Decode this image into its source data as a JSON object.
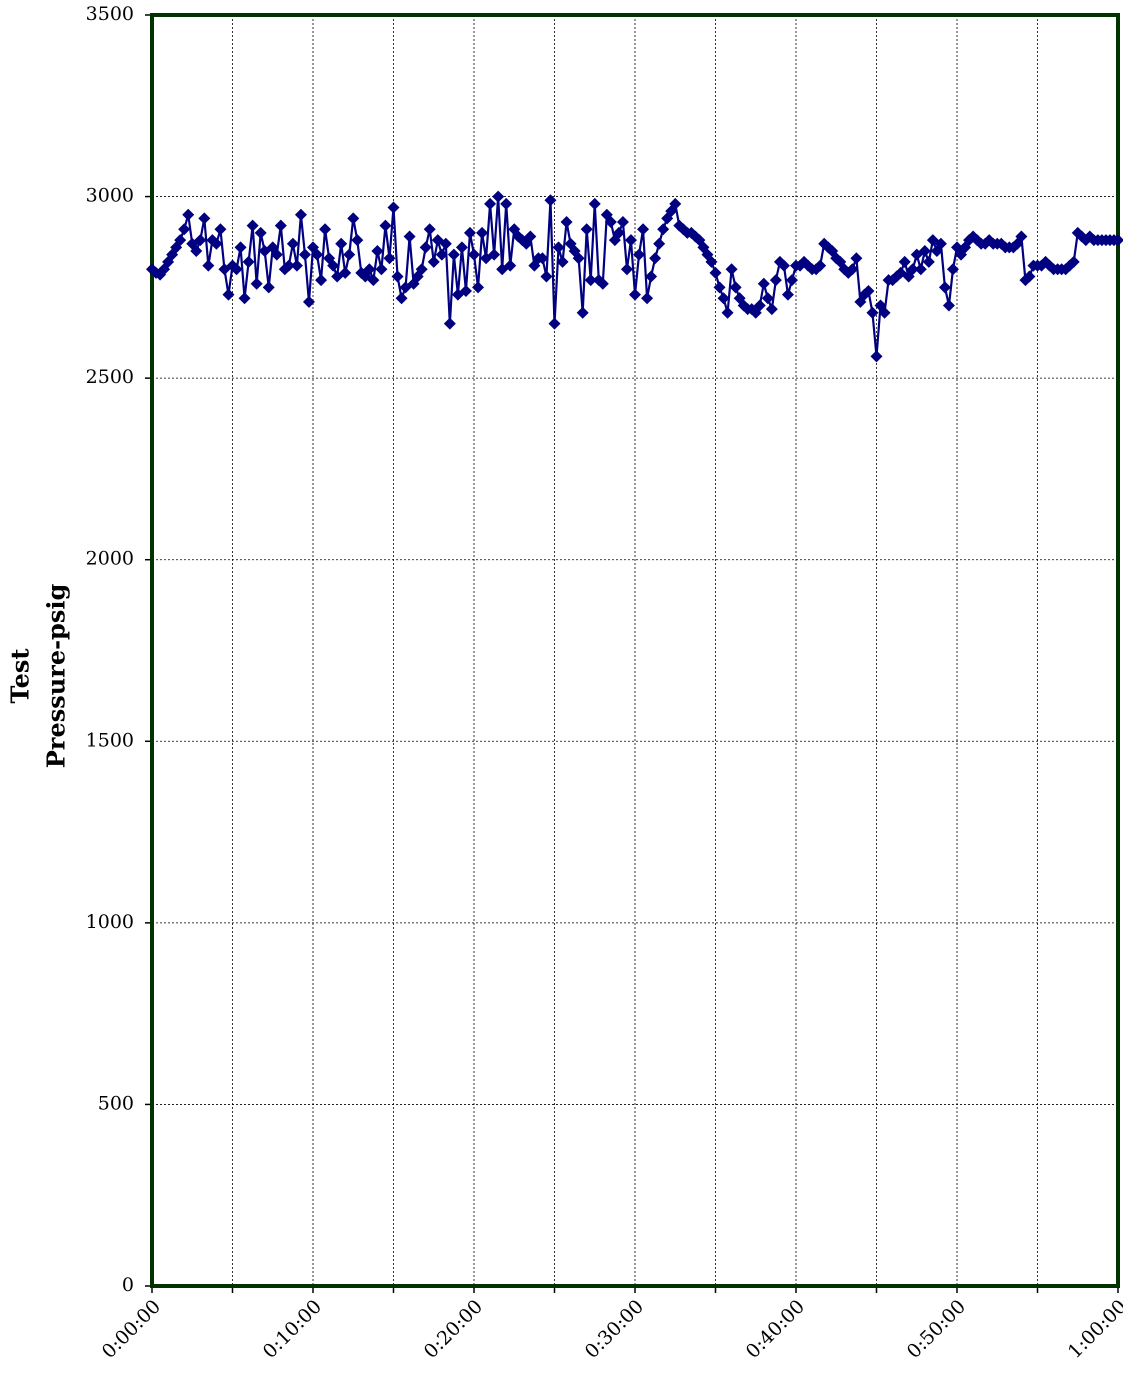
{
  "chart_data": {
    "type": "line",
    "ylabel": [
      "Test",
      "Pressure-psig"
    ],
    "color": "#000080",
    "frame_color": "#003300",
    "grid": true,
    "xlim": [
      0,
      3600
    ],
    "xticks": [
      {
        "value": 0,
        "label": "0:00:00"
      },
      {
        "value": 300,
        "label": null
      },
      {
        "value": 600,
        "label": "0:10:00"
      },
      {
        "value": 900,
        "label": null
      },
      {
        "value": 1200,
        "label": "0:20:00"
      },
      {
        "value": 1500,
        "label": null
      },
      {
        "value": 1800,
        "label": "0:30:00"
      },
      {
        "value": 2100,
        "label": null
      },
      {
        "value": 2400,
        "label": "0:40:00"
      },
      {
        "value": 2700,
        "label": null
      },
      {
        "value": 3000,
        "label": "0:50:00"
      },
      {
        "value": 3300,
        "label": null
      },
      {
        "value": 3600,
        "label": "1:00:00"
      }
    ],
    "ylim": [
      0,
      3500
    ],
    "yticks": [
      0,
      500,
      1000,
      1500,
      2000,
      2500,
      3000,
      3500
    ],
    "x": [
      0,
      15,
      30,
      45,
      60,
      75,
      90,
      105,
      120,
      135,
      150,
      165,
      180,
      195,
      210,
      225,
      240,
      255,
      270,
      285,
      300,
      315,
      330,
      345,
      360,
      375,
      390,
      405,
      420,
      435,
      450,
      465,
      480,
      495,
      510,
      525,
      540,
      555,
      570,
      585,
      600,
      615,
      630,
      645,
      660,
      675,
      690,
      705,
      720,
      735,
      750,
      765,
      780,
      795,
      810,
      825,
      840,
      855,
      870,
      885,
      900,
      915,
      930,
      945,
      960,
      975,
      990,
      1005,
      1020,
      1035,
      1050,
      1065,
      1080,
      1095,
      1110,
      1125,
      1140,
      1155,
      1170,
      1185,
      1200,
      1215,
      1230,
      1245,
      1260,
      1275,
      1290,
      1305,
      1320,
      1335,
      1350,
      1365,
      1380,
      1395,
      1410,
      1425,
      1440,
      1455,
      1470,
      1485,
      1500,
      1515,
      1530,
      1545,
      1560,
      1575,
      1590,
      1605,
      1620,
      1635,
      1650,
      1665,
      1680,
      1695,
      1710,
      1725,
      1740,
      1755,
      1770,
      1785,
      1800,
      1815,
      1830,
      1845,
      1860,
      1875,
      1890,
      1905,
      1920,
      1935,
      1950,
      1965,
      1980,
      1995,
      2010,
      2025,
      2040,
      2055,
      2070,
      2085,
      2100,
      2115,
      2130,
      2145,
      2160,
      2175,
      2190,
      2205,
      2220,
      2235,
      2250,
      2265,
      2280,
      2295,
      2310,
      2325,
      2340,
      2355,
      2370,
      2385,
      2400,
      2415,
      2430,
      2445,
      2460,
      2475,
      2490,
      2505,
      2520,
      2535,
      2550,
      2565,
      2580,
      2595,
      2610,
      2625,
      2640,
      2655,
      2670,
      2685,
      2700,
      2715,
      2730,
      2745,
      2760,
      2775,
      2790,
      2805,
      2820,
      2835,
      2850,
      2865,
      2880,
      2895,
      2910,
      2925,
      2940,
      2955,
      2970,
      2985,
      3000,
      3015,
      3030,
      3045,
      3060,
      3075,
      3090,
      3105,
      3120,
      3135,
      3150,
      3165,
      3180,
      3195,
      3210,
      3225,
      3240,
      3255,
      3270,
      3285,
      3300,
      3315,
      3330,
      3345,
      3360,
      3375,
      3390,
      3405,
      3420,
      3435,
      3450,
      3465,
      3480,
      3495,
      3510,
      3525,
      3540,
      3555,
      3570,
      3585,
      3600
    ],
    "values": [
      2800,
      2790,
      2785,
      2800,
      2820,
      2840,
      2860,
      2880,
      2910,
      2950,
      2870,
      2850,
      2880,
      2940,
      2810,
      2880,
      2870,
      2910,
      2800,
      2730,
      2810,
      2800,
      2860,
      2720,
      2820,
      2920,
      2760,
      2900,
      2850,
      2750,
      2860,
      2840,
      2920,
      2800,
      2810,
      2870,
      2810,
      2950,
      2840,
      2710,
      2860,
      2840,
      2770,
      2910,
      2830,
      2810,
      2780,
      2870,
      2790,
      2840,
      2940,
      2880,
      2790,
      2780,
      2800,
      2770,
      2850,
      2800,
      2920,
      2830,
      2970,
      2780,
      2720,
      2750,
      2890,
      2760,
      2780,
      2800,
      2860,
      2910,
      2820,
      2880,
      2840,
      2870,
      2650,
      2840,
      2730,
      2860,
      2740,
      2900,
      2840,
      2750,
      2900,
      2830,
      2980,
      2840,
      3000,
      2800,
      2980,
      2810,
      2910,
      2890,
      2880,
      2870,
      2890,
      2810,
      2830,
      2830,
      2780,
      2990,
      2650,
      2860,
      2820,
      2930,
      2870,
      2850,
      2830,
      2680,
      2910,
      2770,
      2980,
      2770,
      2760,
      2950,
      2930,
      2880,
      2900,
      2930,
      2800,
      2880,
      2730,
      2840,
      2910,
      2720,
      2780,
      2830,
      2870,
      2910,
      2940,
      2960,
      2980,
      2920,
      2910,
      2900,
      2900,
      2890,
      2880,
      2860,
      2840,
      2820,
      2790,
      2750,
      2720,
      2680,
      2800,
      2750,
      2720,
      2700,
      2690,
      2690,
      2680,
      2700,
      2760,
      2720,
      2690,
      2770,
      2820,
      2810,
      2730,
      2770,
      2810,
      2810,
      2820,
      2810,
      2800,
      2800,
      2810,
      2870,
      2860,
      2850,
      2830,
      2820,
      2800,
      2790,
      2800,
      2830,
      2710,
      2730,
      2740,
      2680,
      2560,
      2700,
      2680,
      2770,
      2770,
      2780,
      2790,
      2820,
      2780,
      2800,
      2840,
      2800,
      2850,
      2820,
      2880,
      2850,
      2870,
      2750,
      2700,
      2800,
      2860,
      2840,
      2860,
      2880,
      2890,
      2880,
      2870,
      2870,
      2880,
      2870,
      2870,
      2870,
      2860,
      2860,
      2860,
      2870,
      2890,
      2770,
      2780,
      2810,
      2810,
      2810,
      2820,
      2810,
      2800,
      2800,
      2800,
      2800,
      2810,
      2820,
      2900,
      2890,
      2880,
      2890,
      2880,
      2880,
      2880,
      2880,
      2880,
      2880,
      2880
    ]
  }
}
